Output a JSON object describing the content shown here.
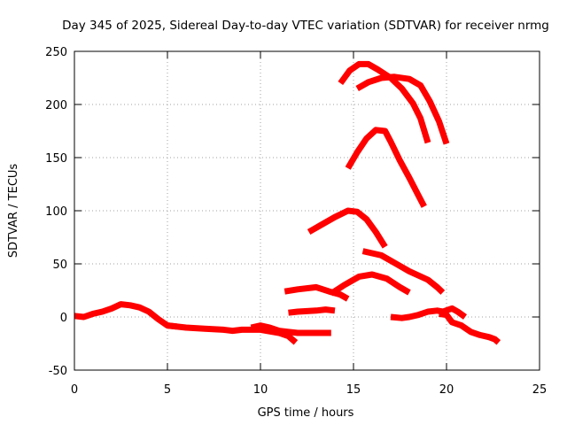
{
  "chart_data": {
    "type": "scatter",
    "title": "Day 345 of 2025, Sidereal Day-to-day VTEC variation (SDTVAR) for receiver nrmg",
    "xlabel": "GPS time / hours",
    "ylabel": "SDTVAR / TECUs",
    "xlim": [
      0,
      25
    ],
    "ylim": [
      -50,
      250
    ],
    "xticks": [
      0,
      5,
      10,
      15,
      20,
      25
    ],
    "yticks": [
      -50,
      0,
      50,
      100,
      150,
      200,
      250
    ],
    "grid": true,
    "color": "#ff0000",
    "series": [
      {
        "name": "arc-1",
        "points": [
          [
            0,
            1
          ],
          [
            0.5,
            0
          ],
          [
            1,
            3
          ],
          [
            1.5,
            5
          ],
          [
            2,
            8
          ],
          [
            2.5,
            12
          ],
          [
            3,
            11
          ],
          [
            3.5,
            9
          ],
          [
            4,
            5
          ],
          [
            4.5,
            -2
          ],
          [
            5,
            -8
          ],
          [
            5.5,
            -9
          ]
        ]
      },
      {
        "name": "arc-2",
        "points": [
          [
            5,
            -8
          ],
          [
            6,
            -10
          ],
          [
            7,
            -11
          ],
          [
            8,
            -12
          ],
          [
            8.5,
            -13
          ],
          [
            9,
            -12
          ],
          [
            10,
            -12
          ],
          [
            11,
            -15
          ],
          [
            11.5,
            -18
          ],
          [
            11.9,
            -24
          ]
        ]
      },
      {
        "name": "arc-3",
        "points": [
          [
            9.5,
            -10
          ],
          [
            10,
            -8
          ],
          [
            10.5,
            -10
          ],
          [
            11,
            -13
          ],
          [
            11.5,
            -14
          ],
          [
            12,
            -15
          ],
          [
            13,
            -15
          ],
          [
            13.8,
            -15
          ]
        ]
      },
      {
        "name": "arc-4",
        "points": [
          [
            11.5,
            4
          ],
          [
            12,
            5
          ],
          [
            13,
            6
          ],
          [
            13.5,
            7
          ],
          [
            14,
            6
          ]
        ]
      },
      {
        "name": "arc-5",
        "points": [
          [
            11.3,
            24
          ],
          [
            12,
            26
          ],
          [
            13,
            28
          ],
          [
            13.7,
            24
          ],
          [
            14.3,
            21
          ],
          [
            14.7,
            17
          ]
        ]
      },
      {
        "name": "arc-6",
        "points": [
          [
            13.8,
            22
          ],
          [
            14.5,
            30
          ],
          [
            15.3,
            38
          ],
          [
            16,
            40
          ],
          [
            16.8,
            36
          ],
          [
            17.5,
            28
          ],
          [
            18,
            23
          ]
        ]
      },
      {
        "name": "arc-7",
        "points": [
          [
            15.5,
            62
          ],
          [
            16.5,
            58
          ],
          [
            17.3,
            50
          ],
          [
            18,
            43
          ],
          [
            19,
            35
          ],
          [
            19.5,
            28
          ],
          [
            19.8,
            23
          ]
        ]
      },
      {
        "name": "arc-8",
        "points": [
          [
            17,
            0
          ],
          [
            17.6,
            -1
          ],
          [
            18,
            0
          ],
          [
            18.5,
            2
          ],
          [
            19,
            5
          ],
          [
            19.5,
            6
          ],
          [
            19.8,
            5
          ],
          [
            20.3,
            8
          ],
          [
            20.6,
            5
          ],
          [
            21,
            0
          ]
        ]
      },
      {
        "name": "arc-9",
        "points": [
          [
            19.6,
            3
          ],
          [
            20,
            2
          ],
          [
            20.3,
            -5
          ],
          [
            20.8,
            -8
          ],
          [
            21.3,
            -14
          ],
          [
            21.8,
            -17
          ],
          [
            22.3,
            -19
          ],
          [
            22.6,
            -21
          ],
          [
            22.8,
            -24
          ]
        ]
      },
      {
        "name": "arc-10",
        "points": [
          [
            12.6,
            80
          ],
          [
            13.3,
            87
          ],
          [
            14,
            94
          ],
          [
            14.7,
            100
          ],
          [
            15.2,
            99
          ],
          [
            15.7,
            92
          ],
          [
            16.2,
            80
          ],
          [
            16.7,
            66
          ]
        ]
      },
      {
        "name": "arc-11",
        "points": [
          [
            14.7,
            140
          ],
          [
            15.2,
            155
          ],
          [
            15.7,
            168
          ],
          [
            16.2,
            176
          ],
          [
            16.7,
            175
          ],
          [
            17,
            165
          ],
          [
            17.5,
            147
          ],
          [
            18,
            131
          ],
          [
            18.5,
            114
          ],
          [
            18.8,
            104
          ]
        ]
      },
      {
        "name": "arc-12",
        "points": [
          [
            14.3,
            220
          ],
          [
            14.8,
            232
          ],
          [
            15.3,
            238
          ],
          [
            15.8,
            238
          ],
          [
            16.3,
            233
          ],
          [
            17,
            225
          ],
          [
            17.6,
            215
          ],
          [
            18.2,
            201
          ],
          [
            18.6,
            187
          ],
          [
            19,
            164
          ]
        ]
      },
      {
        "name": "arc-13",
        "points": [
          [
            15.2,
            215
          ],
          [
            15.8,
            221
          ],
          [
            16.5,
            225
          ],
          [
            17.2,
            226
          ],
          [
            18,
            224
          ],
          [
            18.6,
            218
          ],
          [
            19.1,
            203
          ],
          [
            19.6,
            184
          ],
          [
            20,
            163
          ]
        ]
      }
    ]
  }
}
